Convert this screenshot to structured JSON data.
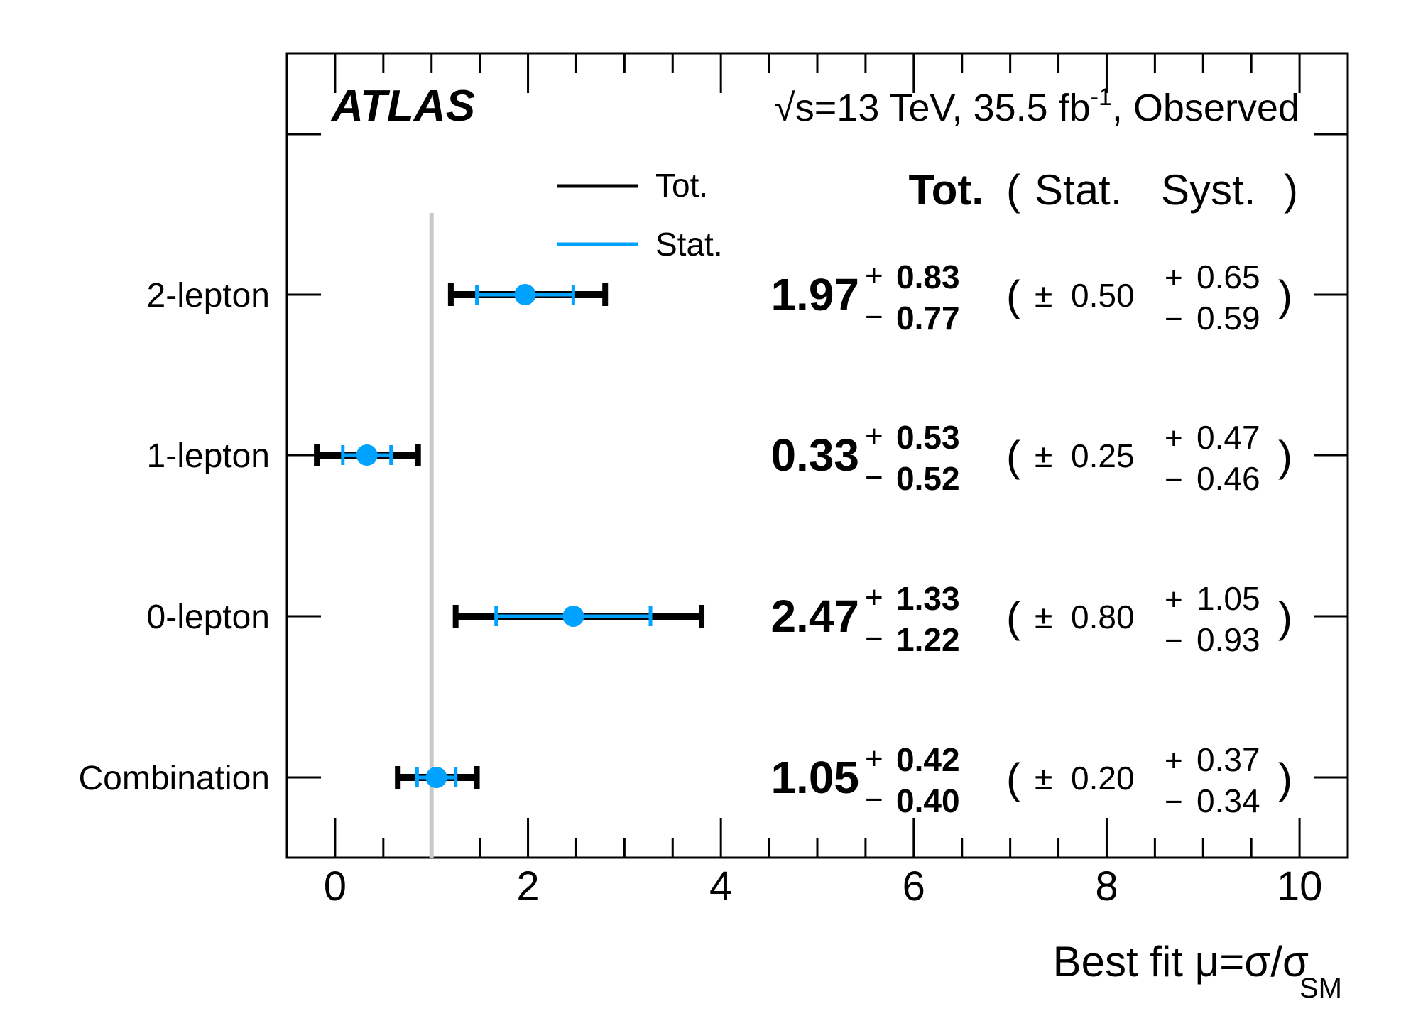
{
  "chart_data": {
    "type": "scatter",
    "experiment_label": "ATLAS",
    "sqrt_symbol": "√",
    "energy_prefix": "s=13 TeV, 35.5 fb",
    "energy_sup": "-1",
    "energy_suffix": ", Observed",
    "xlabel_main": "Best fit μ=σ/σ",
    "xlabel_sub": "SM",
    "xlim": [
      -0.5,
      10.5
    ],
    "xticks": [
      0,
      2,
      4,
      6,
      8,
      10
    ],
    "xtick_labels": [
      "0",
      "2",
      "4",
      "6",
      "8",
      "10"
    ],
    "reference_line_x": 1.0,
    "legend": {
      "placement": "top-center",
      "entries": [
        {
          "label": "Tot.",
          "color": "#000000"
        },
        {
          "label": "Stat.",
          "color": "#00a2ff"
        }
      ]
    },
    "column_headers": {
      "total": "Tot.",
      "open": "(",
      "stat": "Stat.",
      "syst": "Syst.",
      "close": ")"
    },
    "colors": {
      "total": "#000000",
      "stat": "#00a2ff",
      "reference": "#c8c8c8"
    },
    "categories": [
      "2-lepton",
      "1-lepton",
      "0-lepton",
      "Combination"
    ],
    "points": [
      {
        "name": "2-lepton",
        "mu": 1.97,
        "val": "1.97",
        "tot_up": "0.83",
        "tot_down": "0.77",
        "stat": "0.50",
        "syst_up": "0.65",
        "syst_down": "0.59",
        "tot_up_num": 0.83,
        "tot_down_num": 0.77,
        "stat_num": 0.5
      },
      {
        "name": "1-lepton",
        "mu": 0.33,
        "val": "0.33",
        "tot_up": "0.53",
        "tot_down": "0.52",
        "stat": "0.25",
        "syst_up": "0.47",
        "syst_down": "0.46",
        "tot_up_num": 0.53,
        "tot_down_num": 0.52,
        "stat_num": 0.25
      },
      {
        "name": "0-lepton",
        "mu": 2.47,
        "val": "2.47",
        "tot_up": "1.33",
        "tot_down": "1.22",
        "stat": "0.80",
        "syst_up": "1.05",
        "syst_down": "0.93",
        "tot_up_num": 1.33,
        "tot_down_num": 1.22,
        "stat_num": 0.8
      },
      {
        "name": "Combination",
        "mu": 1.05,
        "val": "1.05",
        "tot_up": "0.42",
        "tot_down": "0.40",
        "stat": "0.20",
        "syst_up": "0.37",
        "syst_down": "0.34",
        "tot_up_num": 0.42,
        "tot_down_num": 0.4,
        "stat_num": 0.2
      }
    ]
  }
}
